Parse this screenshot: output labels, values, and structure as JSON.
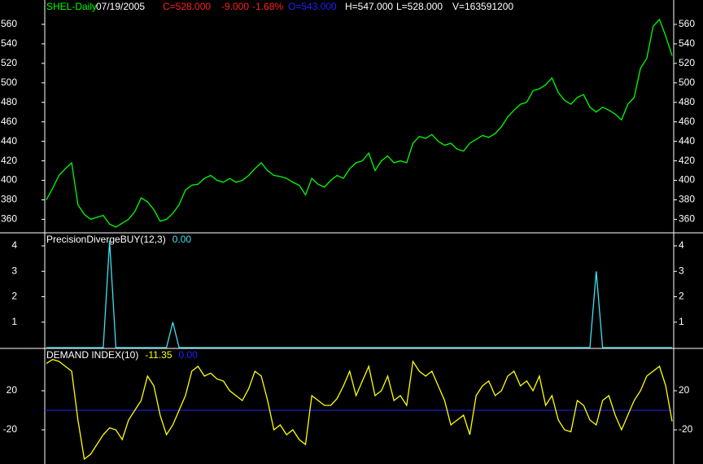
{
  "chart_data": [
    {
      "type": "line",
      "title": "SHEL-Daily",
      "date": "07/19/2005",
      "info": [
        {
          "text": "C=528.000",
          "color": "#ff2020"
        },
        {
          "text": "-9.000",
          "color": "#ff2020"
        },
        {
          "text": "-1.68%",
          "color": "#ff2020"
        },
        {
          "text": "O=543.000",
          "color": "#2020ff"
        },
        {
          "text": "H=547.000",
          "color": "#ffffff"
        },
        {
          "text": "L=528.000",
          "color": "#ffffff"
        },
        {
          "text": "V=163591200",
          "color": "#ffffff"
        }
      ],
      "color": "#00ff00",
      "values": [
        380,
        392,
        405,
        412,
        418,
        375,
        365,
        360,
        362,
        364,
        355,
        352,
        356,
        360,
        368,
        382,
        378,
        370,
        358,
        360,
        366,
        375,
        390,
        395,
        396,
        402,
        405,
        400,
        398,
        402,
        398,
        400,
        405,
        412,
        418,
        410,
        405,
        404,
        402,
        398,
        395,
        385,
        402,
        396,
        393,
        400,
        405,
        402,
        412,
        418,
        420,
        428,
        410,
        420,
        425,
        418,
        420,
        418,
        438,
        445,
        443,
        447,
        440,
        436,
        438,
        432,
        430,
        438,
        442,
        446,
        444,
        448,
        455,
        465,
        472,
        478,
        480,
        492,
        494,
        498,
        505,
        490,
        482,
        478,
        485,
        488,
        475,
        470,
        475,
        472,
        468,
        462,
        478,
        485,
        515,
        525,
        558,
        565,
        548,
        528
      ],
      "ylim": [
        347,
        585
      ],
      "yticks": [
        360,
        380,
        400,
        420,
        440,
        460,
        480,
        500,
        520,
        540,
        560
      ]
    },
    {
      "type": "line",
      "title": "PrecisionDivergeBUY(12,3)",
      "last_label": "0.00",
      "color": "#40e0f0",
      "values": [
        0,
        0,
        0,
        0,
        0,
        0,
        0,
        0,
        0,
        0,
        4.2,
        0,
        0,
        0,
        0,
        0,
        0,
        0,
        0,
        0,
        1,
        0,
        0,
        0,
        0,
        0,
        0,
        0,
        0,
        0,
        0,
        0,
        0,
        0,
        0,
        0,
        0,
        0,
        0,
        0,
        0,
        0,
        0,
        0,
        0,
        0,
        0,
        0,
        0,
        0,
        0,
        0,
        0,
        0,
        0,
        0,
        0,
        0,
        0,
        0,
        0,
        0,
        0,
        0,
        0,
        0,
        0,
        0,
        0,
        0,
        0,
        0,
        0,
        0,
        0,
        0,
        0,
        0,
        0,
        0,
        0,
        0,
        0,
        0,
        0,
        0,
        0,
        3,
        0,
        0,
        0,
        0,
        0,
        0,
        0,
        0,
        0,
        0,
        0,
        0
      ],
      "ylim": [
        0,
        4.48
      ],
      "yticks": [
        1,
        2,
        3,
        4
      ]
    },
    {
      "type": "line",
      "title": "DEMAND INDEX(10)",
      "last_label": "-11.35",
      "color": "#ffff00",
      "values": [
        48,
        52,
        50,
        45,
        40,
        -10,
        -50,
        -45,
        -35,
        -25,
        -18,
        -20,
        -30,
        -10,
        0,
        10,
        35,
        25,
        -5,
        -25,
        -15,
        0,
        15,
        40,
        45,
        35,
        38,
        32,
        30,
        20,
        15,
        10,
        22,
        40,
        35,
        10,
        -20,
        -15,
        -25,
        -20,
        -30,
        -35,
        15,
        10,
        5,
        5,
        12,
        25,
        40,
        15,
        30,
        45,
        15,
        20,
        35,
        10,
        15,
        5,
        50,
        40,
        35,
        40,
        25,
        10,
        -15,
        -10,
        -5,
        -25,
        15,
        25,
        30,
        15,
        20,
        35,
        40,
        25,
        30,
        20,
        35,
        5,
        15,
        -10,
        -20,
        -22,
        10,
        5,
        -10,
        -15,
        10,
        15,
        -5,
        -20,
        -5,
        10,
        20,
        35,
        40,
        45,
        25,
        -11.35
      ],
      "reference": {
        "value": 0,
        "label": "0.00",
        "color": "#2020ff"
      },
      "ylim": [
        -55,
        62.5
      ],
      "yticks": [
        -20,
        20
      ]
    }
  ]
}
